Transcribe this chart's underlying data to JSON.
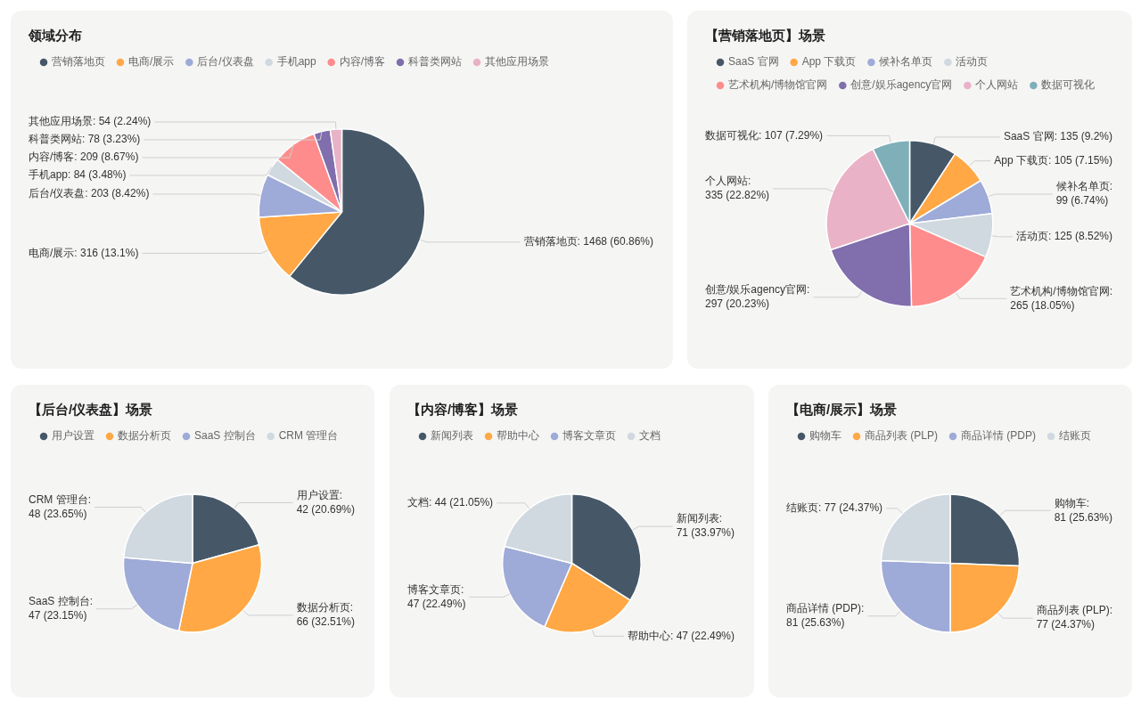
{
  "chart_data": [
    {
      "type": "pie",
      "title": "领域分布",
      "categories": [
        "营销落地页",
        "电商/展示",
        "后台/仪表盘",
        "手机app",
        "内容/博客",
        "科普类网站",
        "其他应用场景"
      ],
      "values": [
        1468,
        316,
        203,
        84,
        209,
        78,
        54
      ],
      "colors": [
        "#465868",
        "#ffa845",
        "#9eaad7",
        "#d0d8e0",
        "#ff8c8c",
        "#806ead",
        "#e9b2c7"
      ],
      "value_labels": [
        "营销落地页: 1468 (60.86%)",
        "电商/展示: 316 (13.1%)",
        "后台/仪表盘: 203 (8.42%)",
        "手机app: 84 (3.48%)",
        "内容/博客: 209 (8.67%)",
        "科普类网站: 78 (3.23%)",
        "其他应用场景: 54 (2.24%)"
      ],
      "legend": "top left"
    },
    {
      "type": "pie",
      "title": "【营销落地页】场景",
      "categories": [
        "SaaS 官网",
        "App 下载页",
        "候补名单页",
        "活动页",
        "艺术机构/博物馆官网",
        "创意/娱乐agency官网",
        "个人网站",
        "数据可视化"
      ],
      "values": [
        135,
        105,
        99,
        125,
        265,
        297,
        335,
        107
      ],
      "colors": [
        "#465868",
        "#ffa845",
        "#9eaad7",
        "#d0d8e0",
        "#ff8c8c",
        "#806ead",
        "#e9b2c7",
        "#7fb0b9"
      ],
      "value_labels": [
        "SaaS 官网: 135 (9.2%)",
        "App 下载页: 105 (7.15%)",
        "候补名单页: 99 (6.74%)",
        "活动页: 125 (8.52%)",
        "艺术机构/博物馆官网: 265 (18.05%)",
        "创意/娱乐agency官网: 297 (20.23%)",
        "个人网站: 335 (22.82%)",
        "数据可视化: 107 (7.29%)"
      ],
      "legend": "top left"
    },
    {
      "type": "pie",
      "title": "【后台/仪表盘】场景",
      "categories": [
        "用户设置",
        "数据分析页",
        "SaaS 控制台",
        "CRM 管理台"
      ],
      "values": [
        42,
        66,
        47,
        48
      ],
      "colors": [
        "#465868",
        "#ffa845",
        "#9eaad7",
        "#d0d8e0"
      ],
      "value_labels": [
        "用户设置: 42 (20.69%)",
        "数据分析页: 66 (32.51%)",
        "SaaS 控制台: 47 (23.15%)",
        "CRM 管理台: 48 (23.65%)"
      ],
      "legend": "top left"
    },
    {
      "type": "pie",
      "title": "【内容/博客】场景",
      "categories": [
        "新闻列表",
        "帮助中心",
        "博客文章页",
        "文档"
      ],
      "values": [
        71,
        47,
        47,
        44
      ],
      "colors": [
        "#465868",
        "#ffa845",
        "#9eaad7",
        "#d0d8e0"
      ],
      "value_labels": [
        "新闻列表: 71 (33.97%)",
        "帮助中心: 47 (22.49%)",
        "博客文章页: 47 (22.49%)",
        "文档: 44 (21.05%)"
      ],
      "legend": "top left"
    },
    {
      "type": "pie",
      "title": "【电商/展示】场景",
      "categories": [
        "购物车",
        "商品列表 (PLP)",
        "商品详情 (PDP)",
        "结账页"
      ],
      "values": [
        81,
        77,
        81,
        77
      ],
      "colors": [
        "#465868",
        "#ffa845",
        "#9eaad7",
        "#d0d8e0"
      ],
      "value_labels": [
        "购物车: 81 (25.63%)",
        "商品列表 (PLP): 77 (24.37%)",
        "商品详情 (PDP): 81 (25.63%)",
        "结账页: 77 (24.37%)"
      ],
      "legend": "top left"
    }
  ]
}
